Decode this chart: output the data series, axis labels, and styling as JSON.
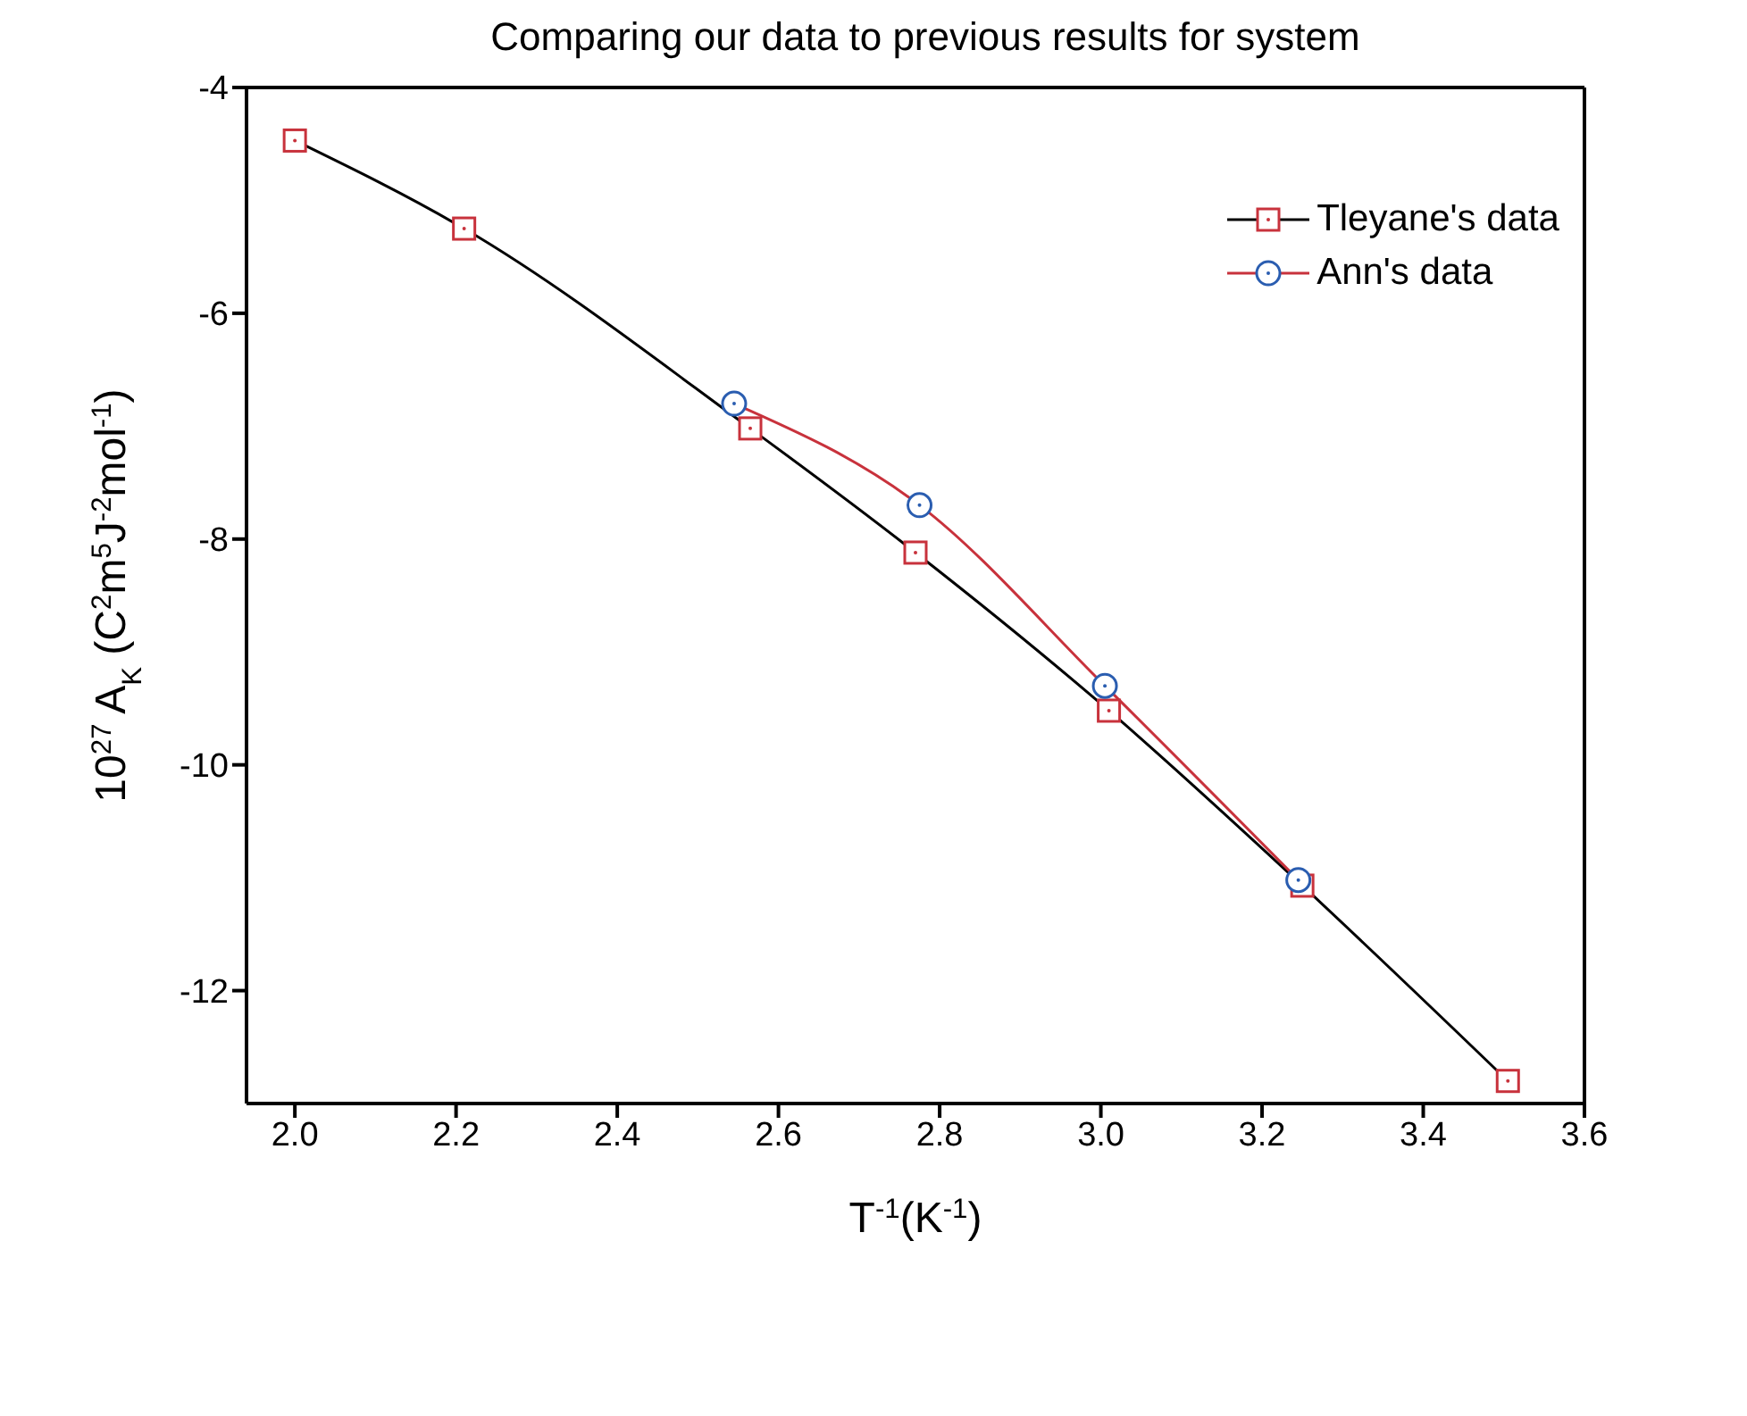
{
  "chart_data": {
    "type": "line",
    "title": "Comparing our data to previous results for system",
    "xlabel": "T$^{-1}$(K$^{-1}$)",
    "ylabel": "10$^{27}$ A$_{K}$  (C$^{2}$m$^{5}$J$^{-2}$mol$^{-1}$)",
    "series": [
      {
        "name": "Tleyane's data",
        "color": "#000000",
        "marker": "square",
        "colors": [
          "#c8323c",
          "#c8323c",
          "#c8323c",
          "#c8323c",
          "#c8323c",
          "#c8323c",
          "#c8323c"
        ],
        "x": [
          2.0,
          2.21,
          2.565,
          2.77,
          3.01,
          3.25,
          3.505
        ],
        "values": [
          -4.47,
          -5.25,
          -7.02,
          -8.12,
          -9.52,
          -11.07,
          -12.8
        ]
      },
      {
        "name": "Ann's data",
        "color": "#c8323c",
        "marker": "circle",
        "colors": [
          "#2a5db0",
          "#2a5db0",
          "#2a5db0",
          "#2a5db0"
        ],
        "x": [
          2.545,
          2.775,
          3.005,
          3.245
        ],
        "values": [
          -6.8,
          -7.7,
          -9.3,
          -11.02
        ]
      }
    ],
    "xlim": [
      1.94,
      3.6
    ],
    "xticks": [
      {
        "value": 2,
        "label": "2.0"
      },
      2.2,
      2.4,
      2.6,
      2.8,
      {
        "value": 3,
        "label": "3.0"
      },
      3.2,
      3.4,
      3.6
    ],
    "ylim": [
      -13,
      -4
    ],
    "yticks": [
      -4,
      -6,
      -8,
      -10,
      -12
    ],
    "legend": "top right",
    "line_style": "solid"
  }
}
